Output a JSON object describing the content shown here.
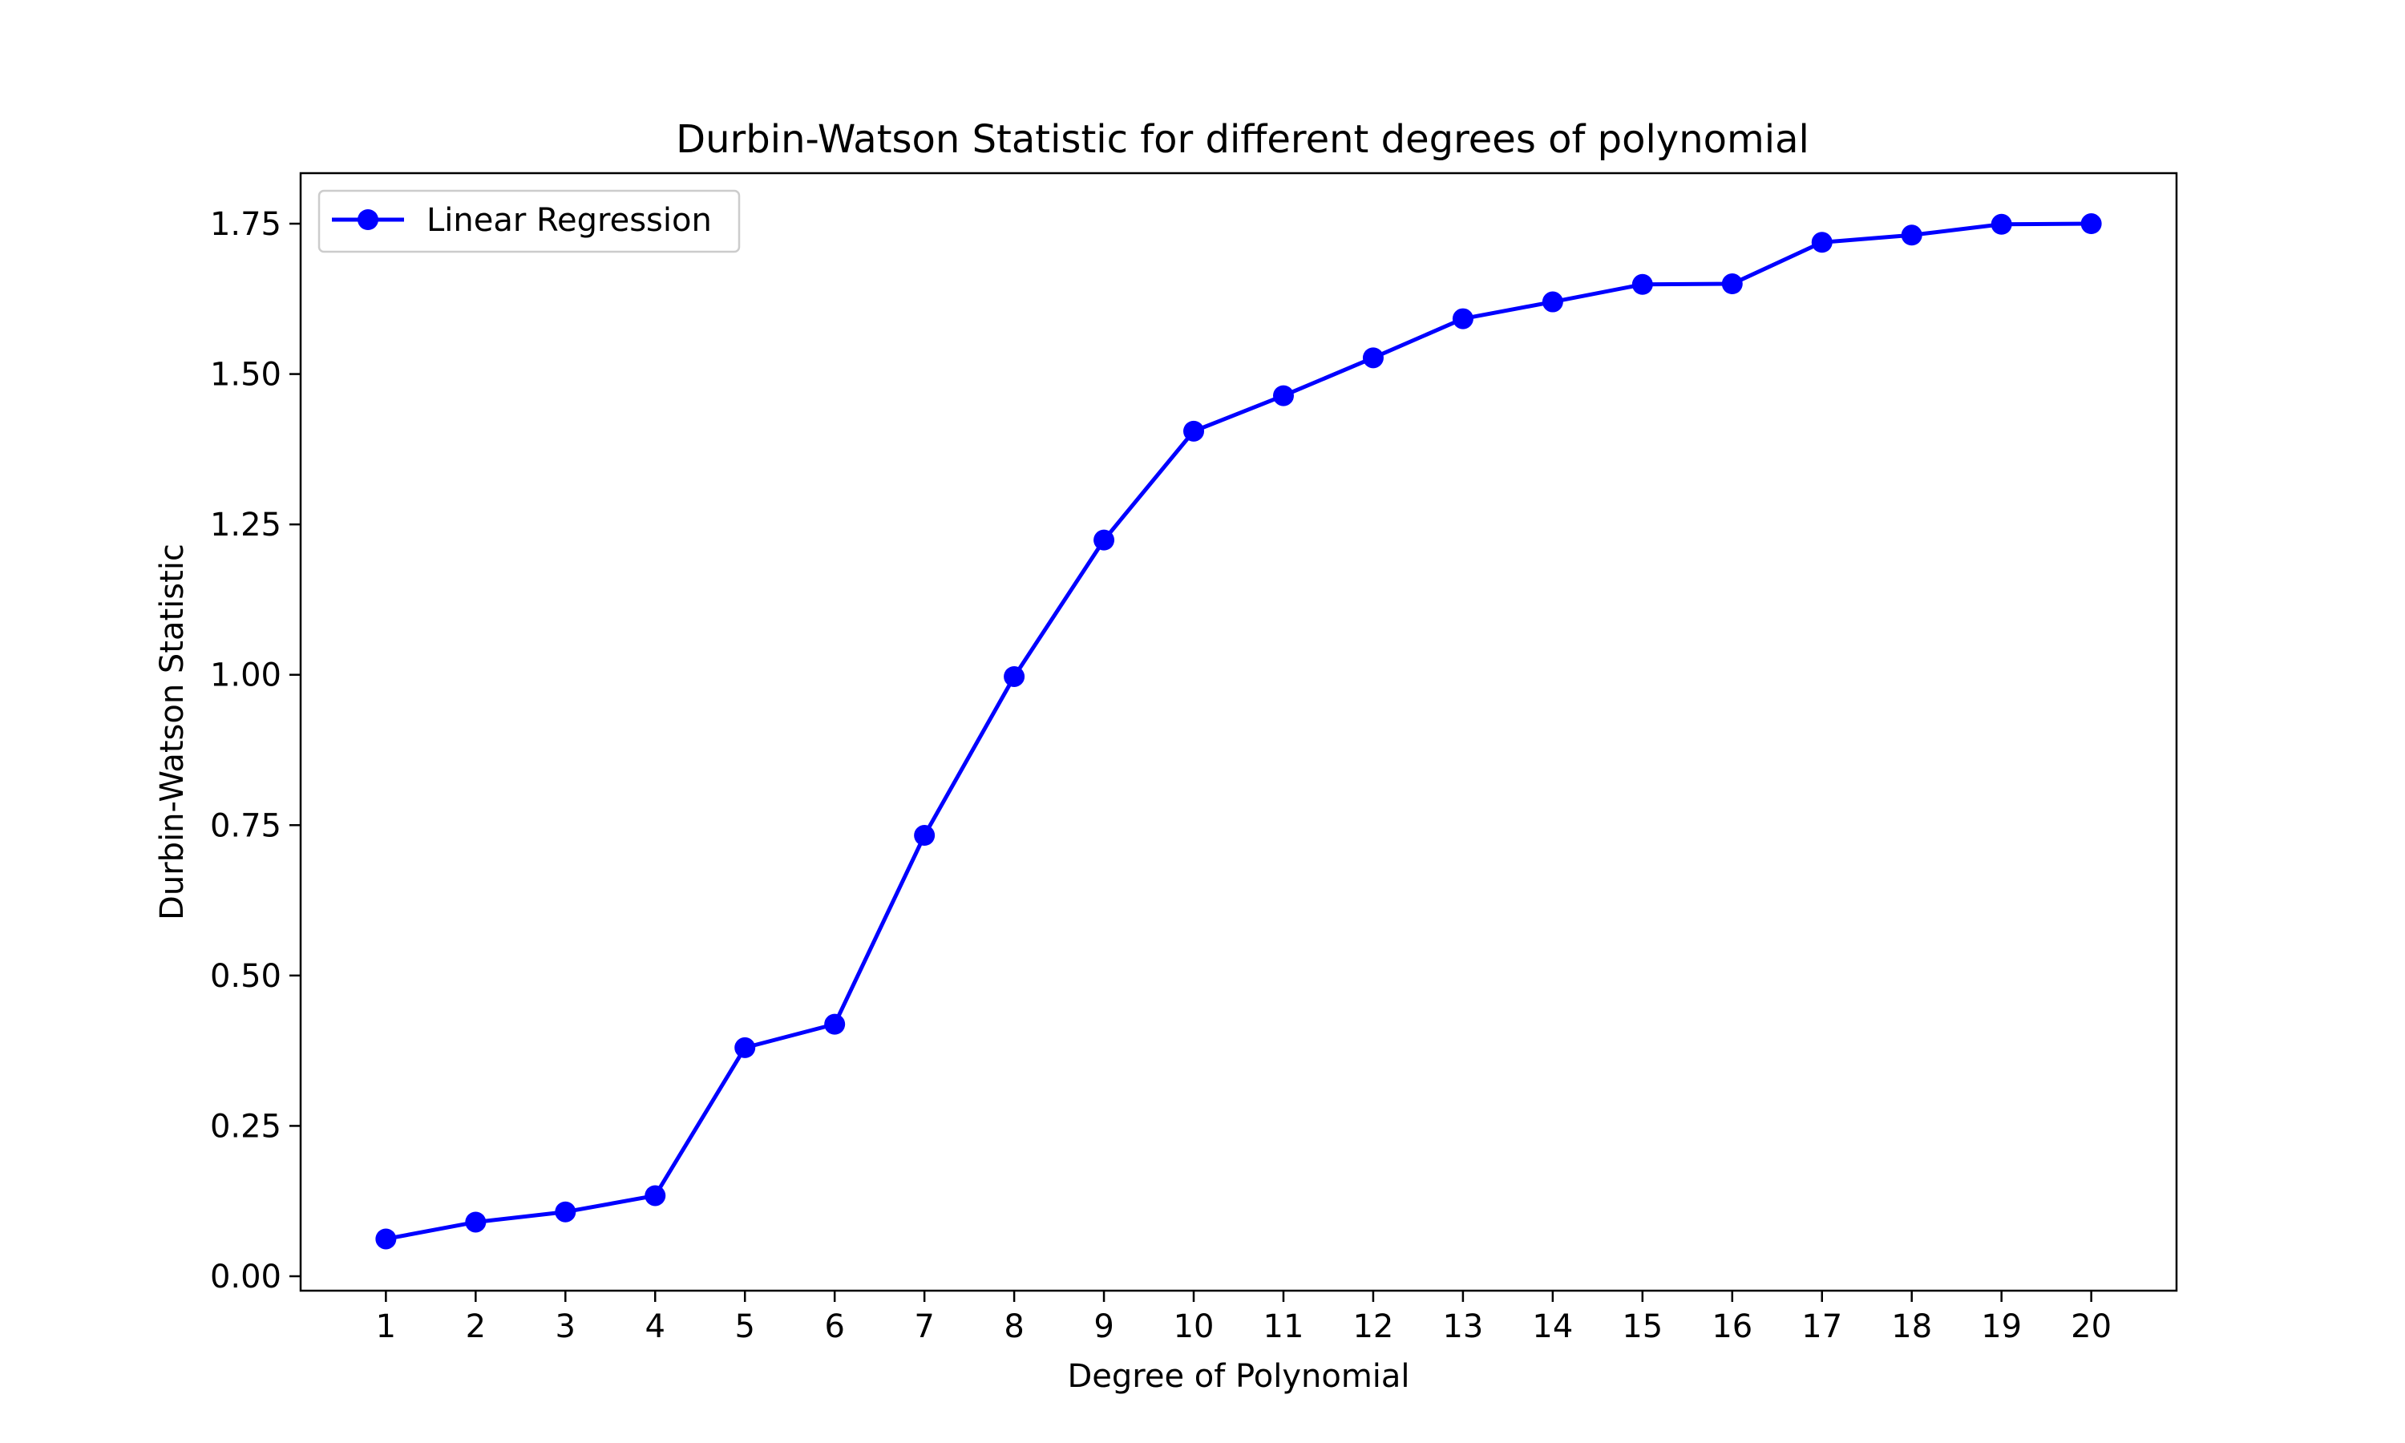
{
  "chart_data": {
    "type": "line",
    "title": "Durbin-Watson Statistic for different degrees of polynomial",
    "xlabel": "Degree of Polynomial",
    "ylabel": "Durbin-Watson Statistic",
    "x": [
      1,
      2,
      3,
      4,
      5,
      6,
      7,
      8,
      9,
      10,
      11,
      12,
      13,
      14,
      15,
      16,
      17,
      18,
      19,
      20
    ],
    "x_tick_labels": [
      "1",
      "2",
      "3",
      "4",
      "5",
      "6",
      "7",
      "8",
      "9",
      "10",
      "11",
      "12",
      "13",
      "14",
      "15",
      "16",
      "17",
      "18",
      "19",
      "20"
    ],
    "xlim": [
      0.05,
      20.95
    ],
    "ylim": [
      -0.024,
      1.834
    ],
    "y_ticks": [
      0.0,
      0.25,
      0.5,
      0.75,
      1.0,
      1.25,
      1.5,
      1.75
    ],
    "y_tick_labels": [
      "0.00",
      "0.25",
      "0.50",
      "0.75",
      "1.00",
      "1.25",
      "1.50",
      "1.75"
    ],
    "grid": false,
    "legend_position": "upper-left",
    "series": [
      {
        "name": "Linear Regression",
        "color": "#0000ff",
        "marker": "circle",
        "values": [
          0.062,
          0.09,
          0.107,
          0.134,
          0.38,
          0.419,
          0.733,
          0.997,
          1.224,
          1.405,
          1.464,
          1.527,
          1.592,
          1.62,
          1.649,
          1.65,
          1.719,
          1.731,
          1.749,
          1.75
        ]
      }
    ]
  }
}
